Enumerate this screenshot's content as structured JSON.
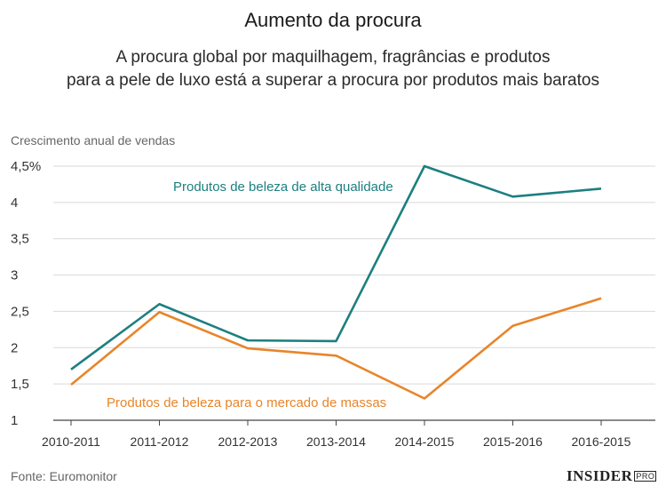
{
  "header": {
    "title": "Aumento da procura",
    "subtitle_line1": "A procura global por maquilhagem, fragrâncias e produtos",
    "subtitle_line2": "para a pele de luxo está a superar a procura por produtos mais baratos"
  },
  "footer": {
    "source": "Fonte: Euromonitor",
    "logo_main": "INSIDER",
    "logo_pro": "PRO"
  },
  "chart_data": {
    "type": "line",
    "ylabel": "Crescimento anual de vendas",
    "categories": [
      "2010-2011",
      "2011-2012",
      "2012-2013",
      "2013-2014",
      "2014-2015",
      "2015-2016",
      "2016-2015"
    ],
    "ylim": [
      1,
      4.5
    ],
    "yticks": [
      "1",
      "1,5",
      "2",
      "2,5",
      "3",
      "3,5",
      "4",
      "4,5%"
    ],
    "ytick_values": [
      1,
      1.5,
      2,
      2.5,
      3,
      3.5,
      4,
      4.5
    ],
    "grid": "horizontal",
    "series": [
      {
        "name": "Produtos de beleza de alta qualidade",
        "color": "#1d7f80",
        "values": [
          1.7,
          2.6,
          2.1,
          2.09,
          4.5,
          4.08,
          4.19
        ]
      },
      {
        "name": "Produtos de beleza para o mercado de massas",
        "color": "#e8852a",
        "values": [
          1.49,
          2.49,
          1.99,
          1.89,
          1.3,
          2.3,
          2.68
        ]
      }
    ]
  }
}
